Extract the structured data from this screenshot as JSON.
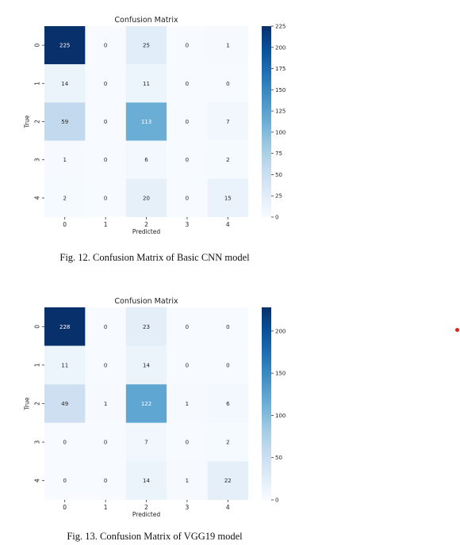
{
  "chart_data": [
    {
      "type": "heatmap",
      "title": "Confusion Matrix",
      "xlabel": "Predicted",
      "ylabel": "True",
      "x_ticks": [
        "0",
        "1",
        "2",
        "3",
        "4"
      ],
      "y_ticks": [
        "0",
        "1",
        "2",
        "3",
        "4"
      ],
      "matrix": [
        [
          225,
          0,
          25,
          0,
          1
        ],
        [
          14,
          0,
          11,
          0,
          0
        ],
        [
          59,
          0,
          113,
          0,
          7
        ],
        [
          1,
          0,
          6,
          0,
          2
        ],
        [
          2,
          0,
          20,
          0,
          15
        ]
      ],
      "colorbar": {
        "min": 0,
        "max": 225,
        "ticks": [
          0,
          25,
          50,
          75,
          100,
          125,
          150,
          175,
          200,
          225
        ],
        "colormap": "Blues"
      },
      "caption": "Fig. 12.  Confusion Matrix of Basic CNN model"
    },
    {
      "type": "heatmap",
      "title": "Confusion Matrix",
      "xlabel": "Predicted",
      "ylabel": "True",
      "x_ticks": [
        "0",
        "1",
        "2",
        "3",
        "4"
      ],
      "y_ticks": [
        "0",
        "1",
        "2",
        "3",
        "4"
      ],
      "matrix": [
        [
          228,
          0,
          23,
          0,
          0
        ],
        [
          11,
          0,
          14,
          0,
          0
        ],
        [
          49,
          1,
          122,
          1,
          6
        ],
        [
          0,
          0,
          7,
          0,
          2
        ],
        [
          0,
          0,
          14,
          1,
          22
        ]
      ],
      "colorbar": {
        "min": 0,
        "max": 228,
        "ticks": [
          0,
          50,
          100,
          150,
          200
        ],
        "colormap": "Blues"
      },
      "caption": "Fig. 13.  Confusion Matrix of VGG19 model"
    }
  ],
  "colors": {
    "annotation_dark": "#262626",
    "annotation_light": "#ffffff",
    "marker": "#e0241b"
  }
}
